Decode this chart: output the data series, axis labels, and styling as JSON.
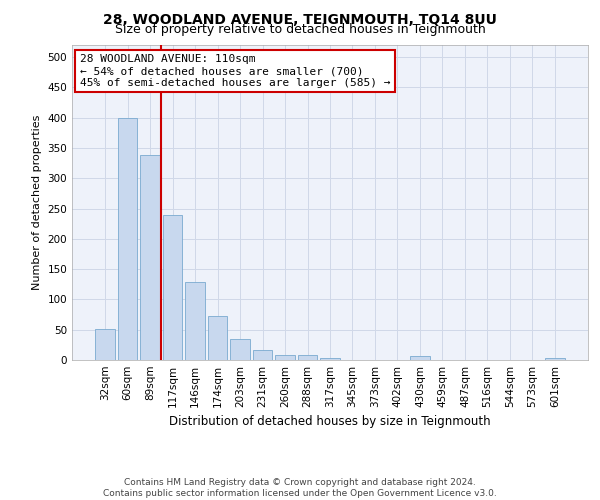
{
  "title": "28, WOODLAND AVENUE, TEIGNMOUTH, TQ14 8UU",
  "subtitle": "Size of property relative to detached houses in Teignmouth",
  "xlabel": "Distribution of detached houses by size in Teignmouth",
  "ylabel": "Number of detached properties",
  "categories": [
    "32sqm",
    "60sqm",
    "89sqm",
    "117sqm",
    "146sqm",
    "174sqm",
    "203sqm",
    "231sqm",
    "260sqm",
    "288sqm",
    "317sqm",
    "345sqm",
    "373sqm",
    "402sqm",
    "430sqm",
    "459sqm",
    "487sqm",
    "516sqm",
    "544sqm",
    "573sqm",
    "601sqm"
  ],
  "values": [
    52,
    400,
    338,
    240,
    128,
    72,
    35,
    17,
    8,
    8,
    4,
    0,
    0,
    0,
    6,
    0,
    0,
    0,
    0,
    0,
    4
  ],
  "bar_color": "#c8d8ee",
  "bar_edge_color": "#7aaad0",
  "grid_color": "#d0d8e8",
  "background_color": "#eef2fa",
  "annotation_line1": "28 WOODLAND AVENUE: 110sqm",
  "annotation_line2": "← 54% of detached houses are smaller (700)",
  "annotation_line3": "45% of semi-detached houses are larger (585) →",
  "annotation_box_facecolor": "#ffffff",
  "annotation_box_edgecolor": "#cc0000",
  "vline_x": 2.5,
  "vline_color": "#cc0000",
  "ylim": [
    0,
    520
  ],
  "yticks": [
    0,
    50,
    100,
    150,
    200,
    250,
    300,
    350,
    400,
    450,
    500
  ],
  "footnote": "Contains HM Land Registry data © Crown copyright and database right 2024.\nContains public sector information licensed under the Open Government Licence v3.0.",
  "title_fontsize": 10,
  "subtitle_fontsize": 9,
  "xlabel_fontsize": 8.5,
  "ylabel_fontsize": 8,
  "tick_fontsize": 7.5,
  "annotation_fontsize": 8,
  "footnote_fontsize": 6.5
}
